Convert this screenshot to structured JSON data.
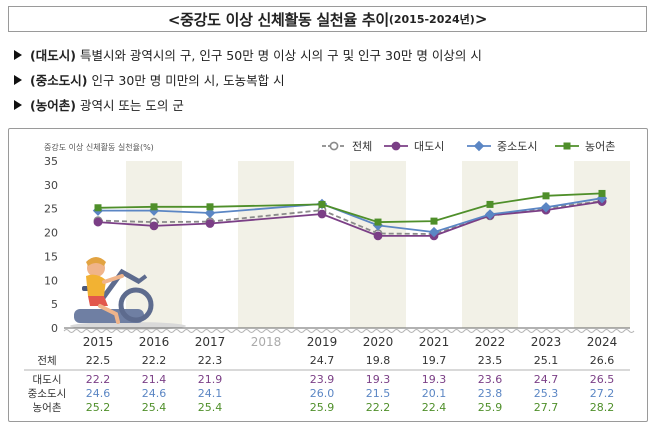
{
  "header": {
    "title_main": "<중강도 이상 신체활동 실천율 추이",
    "title_years": "(2015-2024년)",
    "title_close": ">"
  },
  "definitions": [
    {
      "term": "(대도시)",
      "text": "특별시와 광역시의 구, 인구 50만 명 이상 시의 구 및 인구 30만 명 이상의 시"
    },
    {
      "term": "(중소도시)",
      "text": "인구 30만 명 미만의 시, 도농복합 시"
    },
    {
      "term": "(농어촌)",
      "text": "광역시 또는 도의 군"
    }
  ],
  "colors": {
    "total": "#8a8a8a",
    "metro": "#7b3f86",
    "small": "#5b86c4",
    "rural": "#4f8f2a",
    "band": "#f2f1e7",
    "axis": "#666666"
  },
  "chart_data": {
    "type": "line",
    "ylabel": "중강도 이상 신체활동 실천율(%)",
    "ylim": [
      0,
      35
    ],
    "yticks": [
      0,
      5,
      10,
      15,
      20,
      25,
      30,
      35
    ],
    "x": [
      "2015",
      "2016",
      "2017",
      "2018",
      "2019",
      "2020",
      "2021",
      "2022",
      "2023",
      "2024"
    ],
    "legend_position": "top-right",
    "grid": false,
    "series": [
      {
        "name": "전체",
        "key": "total",
        "marker": "circle",
        "dashed": true,
        "values": [
          22.5,
          22.2,
          22.3,
          null,
          24.7,
          19.8,
          19.7,
          23.5,
          25.1,
          26.6
        ],
        "table_values": [
          "22.5",
          "22.2",
          "22.3",
          "",
          "24.7",
          "19.8",
          "19.7",
          "23.5",
          "25.1",
          "26.6"
        ]
      },
      {
        "name": "대도시",
        "key": "metro",
        "marker": "circle",
        "dashed": false,
        "values": [
          22.2,
          21.4,
          21.9,
          null,
          23.9,
          19.3,
          19.3,
          23.6,
          24.7,
          26.5
        ],
        "table_values": [
          "22.2",
          "21.4",
          "21.9",
          "",
          "23.9",
          "19.3",
          "19.3",
          "23.6",
          "24.7",
          "26.5"
        ]
      },
      {
        "name": "중소도시",
        "key": "small",
        "marker": "diamond",
        "dashed": false,
        "values": [
          24.6,
          24.6,
          24.1,
          null,
          26.0,
          21.5,
          20.1,
          23.8,
          25.3,
          27.2
        ],
        "table_values": [
          "24.6",
          "24.6",
          "24.1",
          "",
          "26.0",
          "21.5",
          "20.1",
          "23.8",
          "25.3",
          "27.2"
        ]
      },
      {
        "name": "농어촌",
        "key": "rural",
        "marker": "square",
        "dashed": false,
        "values": [
          25.2,
          25.4,
          25.4,
          null,
          25.9,
          22.2,
          22.4,
          25.9,
          27.7,
          28.2
        ],
        "table_values": [
          "25.2",
          "25.4",
          "25.4",
          "",
          "25.9",
          "22.2",
          "22.4",
          "25.9",
          "27.7",
          "28.2"
        ]
      }
    ]
  }
}
